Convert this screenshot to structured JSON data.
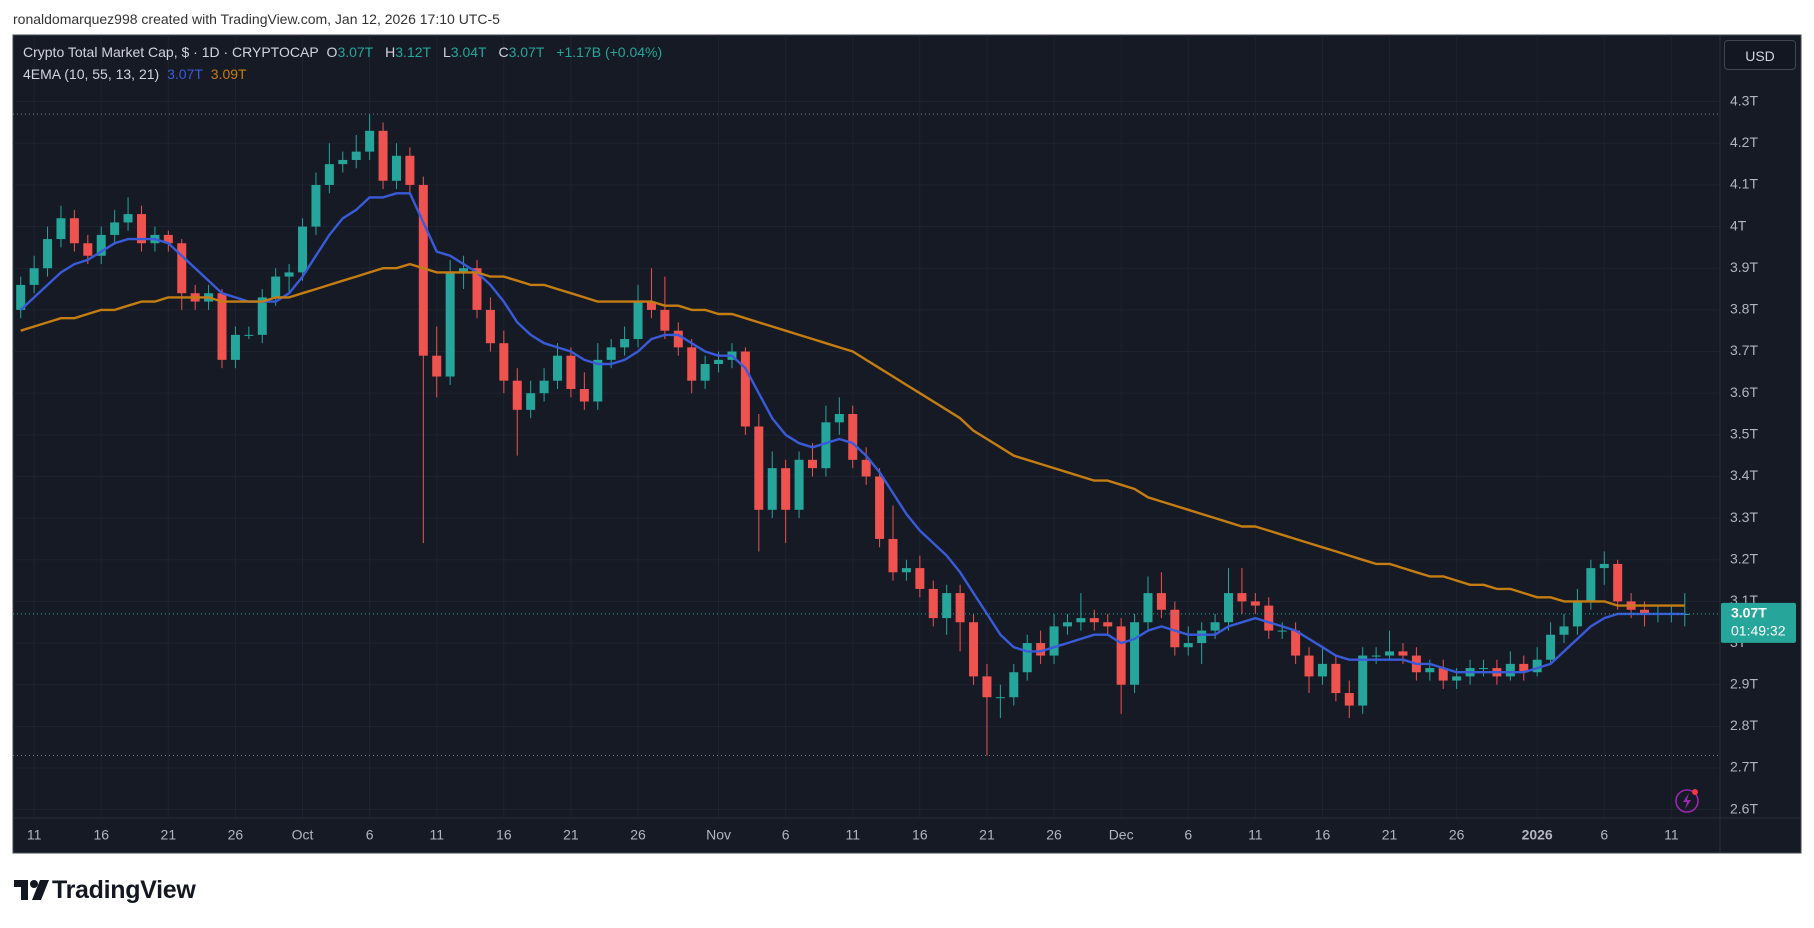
{
  "header": {
    "attribution": "ronaldomarquez998 created with TradingView.com, Jan 12, 2026 17:10 UTC-5"
  },
  "chart_data": {
    "type": "candlestick",
    "title": "Crypto Total Market Cap, $ · 1D · CRYPTOCAP",
    "legend": {
      "o_label": "O",
      "o": "3.07T",
      "h_label": "H",
      "h": "3.12T",
      "l_label": "L",
      "l": "3.04T",
      "c_label": "C",
      "c": "3.07T",
      "change": "+1.17B (+0.04%)"
    },
    "indicator": "4EMA (10, 55, 13, 21)",
    "currency": "USD",
    "last_price_label": "3.07T",
    "countdown": "01:49:32",
    "categories": [
      null,
      "11",
      null,
      null,
      null,
      null,
      "16",
      null,
      null,
      null,
      null,
      "21",
      null,
      null,
      null,
      null,
      "26",
      null,
      null,
      null,
      null,
      "Oct",
      null,
      null,
      null,
      null,
      "6",
      null,
      null,
      null,
      null,
      "11",
      null,
      null,
      null,
      null,
      "16",
      null,
      null,
      null,
      null,
      "21",
      null,
      null,
      null,
      null,
      "26",
      null,
      null,
      null,
      null,
      null,
      "Nov",
      null,
      null,
      null,
      null,
      "6",
      null,
      null,
      null,
      null,
      "11",
      null,
      null,
      null,
      null,
      "16",
      null,
      null,
      null,
      null,
      "21",
      null,
      null,
      null,
      null,
      "26",
      null,
      null,
      null,
      null,
      "Dec",
      null,
      null,
      null,
      null,
      "6",
      null,
      null,
      null,
      null,
      "11",
      null,
      null,
      null,
      null,
      "16",
      null,
      null,
      null,
      null,
      "21",
      null,
      null,
      null,
      null,
      "26",
      null,
      null,
      null,
      null,
      null,
      "2026",
      null,
      null,
      null,
      null,
      "6",
      null,
      null,
      null,
      null,
      "11",
      null
    ],
    "open": [
      3.8,
      3.86,
      3.9,
      3.97,
      4.02,
      3.96,
      3.93,
      3.98,
      4.01,
      4.03,
      3.96,
      3.98,
      3.96,
      3.84,
      3.82,
      3.84,
      3.68,
      3.74,
      3.74,
      3.83,
      3.88,
      3.89,
      4.0,
      4.1,
      4.15,
      4.16,
      4.18,
      4.23,
      4.11,
      4.17,
      4.1,
      3.69,
      3.64,
      3.89,
      3.9,
      3.8,
      3.72,
      3.63,
      3.56,
      3.6,
      3.63,
      3.69,
      3.61,
      3.58,
      3.68,
      3.71,
      3.73,
      3.82,
      3.8,
      3.75,
      3.71,
      3.63,
      3.67,
      3.68,
      3.7,
      3.52,
      3.32,
      3.42,
      3.32,
      3.44,
      3.42,
      3.53,
      3.55,
      3.44,
      3.4,
      3.25,
      3.17,
      3.18,
      3.13,
      3.06,
      3.12,
      3.05,
      2.92,
      2.87,
      2.87,
      2.93,
      3.0,
      2.97,
      3.04,
      3.05,
      3.06,
      3.05,
      3.04,
      2.9,
      3.05,
      3.12,
      3.08,
      2.99,
      3.0,
      3.03,
      3.05,
      3.12,
      3.1,
      3.09,
      3.03,
      3.03,
      2.97,
      2.92,
      2.95,
      2.88,
      2.85,
      2.97,
      2.97,
      2.98,
      2.97,
      2.93,
      2.94,
      2.91,
      2.92,
      2.94,
      2.94,
      2.92,
      2.95,
      2.93,
      2.96,
      3.02,
      3.04,
      3.1,
      3.18,
      3.19,
      3.1,
      3.08,
      3.07,
      3.07,
      3.07
    ],
    "high": [
      3.88,
      3.93,
      4.0,
      4.05,
      4.04,
      3.98,
      4.0,
      4.04,
      4.07,
      4.05,
      4.0,
      3.99,
      3.97,
      3.86,
      3.86,
      3.85,
      3.76,
      3.76,
      3.85,
      3.9,
      3.91,
      4.02,
      4.13,
      4.2,
      4.18,
      4.22,
      4.27,
      4.25,
      4.2,
      4.19,
      4.12,
      3.76,
      3.92,
      3.93,
      3.92,
      3.83,
      3.75,
      3.66,
      3.63,
      3.66,
      3.72,
      3.71,
      3.65,
      3.72,
      3.73,
      3.76,
      3.86,
      3.9,
      3.88,
      3.77,
      3.73,
      3.69,
      3.7,
      3.72,
      3.71,
      3.55,
      3.46,
      3.44,
      3.46,
      3.48,
      3.57,
      3.59,
      3.57,
      3.47,
      3.42,
      3.33,
      3.2,
      3.21,
      3.15,
      3.14,
      3.14,
      3.07,
      2.95,
      2.9,
      2.95,
      3.02,
      3.03,
      3.07,
      3.07,
      3.12,
      3.08,
      3.07,
      3.06,
      3.07,
      3.16,
      3.17,
      3.1,
      3.04,
      3.05,
      3.07,
      3.18,
      3.18,
      3.12,
      3.11,
      3.05,
      3.05,
      2.99,
      2.99,
      2.97,
      2.91,
      2.99,
      2.99,
      3.03,
      3.0,
      2.99,
      2.96,
      2.96,
      2.94,
      2.96,
      2.96,
      2.96,
      2.98,
      2.97,
      2.99,
      3.05,
      3.07,
      3.13,
      3.2,
      3.22,
      3.2,
      3.12,
      3.1,
      3.09,
      3.09,
      3.12
    ],
    "low": [
      3.78,
      3.84,
      3.88,
      3.95,
      3.94,
      3.91,
      3.91,
      3.96,
      3.99,
      3.94,
      3.94,
      3.94,
      3.8,
      3.8,
      3.8,
      3.66,
      3.66,
      3.73,
      3.72,
      3.81,
      3.84,
      3.87,
      3.98,
      4.08,
      4.13,
      4.14,
      4.16,
      4.09,
      4.09,
      4.08,
      3.24,
      3.59,
      3.62,
      3.85,
      3.78,
      3.7,
      3.6,
      3.45,
      3.54,
      3.58,
      3.61,
      3.59,
      3.56,
      3.56,
      3.66,
      3.69,
      3.71,
      3.78,
      3.73,
      3.69,
      3.6,
      3.61,
      3.65,
      3.66,
      3.5,
      3.22,
      3.3,
      3.24,
      3.3,
      3.4,
      3.4,
      3.5,
      3.42,
      3.38,
      3.23,
      3.15,
      3.15,
      3.11,
      3.04,
      3.02,
      2.98,
      2.9,
      2.73,
      2.82,
      2.85,
      2.91,
      2.95,
      2.95,
      3.02,
      3.03,
      3.03,
      3.02,
      2.83,
      2.88,
      3.03,
      3.06,
      2.97,
      2.97,
      2.95,
      3.01,
      3.03,
      3.07,
      3.07,
      3.01,
      3.01,
      2.95,
      2.88,
      2.9,
      2.86,
      2.82,
      2.83,
      2.95,
      2.96,
      2.95,
      2.91,
      2.91,
      2.89,
      2.89,
      2.9,
      2.92,
      2.9,
      2.91,
      2.91,
      2.92,
      2.95,
      3.0,
      3.02,
      3.08,
      3.14,
      3.08,
      3.06,
      3.04,
      3.05,
      3.05,
      3.04
    ],
    "close": [
      3.86,
      3.9,
      3.97,
      4.02,
      3.96,
      3.93,
      3.98,
      4.01,
      4.03,
      3.96,
      3.98,
      3.96,
      3.84,
      3.82,
      3.84,
      3.68,
      3.74,
      3.74,
      3.83,
      3.88,
      3.89,
      4.0,
      4.1,
      4.15,
      4.16,
      4.18,
      4.23,
      4.11,
      4.17,
      4.1,
      3.69,
      3.64,
      3.89,
      3.9,
      3.8,
      3.72,
      3.63,
      3.56,
      3.6,
      3.63,
      3.69,
      3.61,
      3.58,
      3.68,
      3.71,
      3.73,
      3.82,
      3.8,
      3.75,
      3.71,
      3.63,
      3.67,
      3.68,
      3.7,
      3.52,
      3.32,
      3.42,
      3.32,
      3.44,
      3.42,
      3.53,
      3.55,
      3.44,
      3.4,
      3.25,
      3.17,
      3.18,
      3.13,
      3.06,
      3.12,
      3.05,
      2.92,
      2.87,
      2.87,
      2.93,
      3.0,
      2.97,
      3.04,
      3.05,
      3.06,
      3.05,
      3.04,
      2.9,
      3.05,
      3.12,
      3.08,
      2.99,
      3.0,
      3.03,
      3.05,
      3.12,
      3.1,
      3.09,
      3.03,
      3.03,
      2.97,
      2.92,
      2.95,
      2.88,
      2.85,
      2.97,
      2.97,
      2.98,
      2.97,
      2.93,
      2.94,
      2.91,
      2.92,
      2.94,
      2.94,
      2.92,
      2.95,
      2.93,
      2.96,
      3.02,
      3.04,
      3.1,
      3.18,
      3.19,
      3.1,
      3.08,
      3.07,
      3.07,
      3.07,
      3.07
    ],
    "up_color": "#26a69a",
    "down_color": "#ef5350",
    "series": [
      {
        "color": "#3a5bd9",
        "last_label": "3.07T",
        "values": [
          3.8,
          3.83,
          3.86,
          3.89,
          3.91,
          3.92,
          3.94,
          3.96,
          3.97,
          3.97,
          3.97,
          3.96,
          3.93,
          3.9,
          3.87,
          3.84,
          3.83,
          3.82,
          3.82,
          3.82,
          3.84,
          3.88,
          3.93,
          3.98,
          4.02,
          4.04,
          4.07,
          4.07,
          4.08,
          4.08,
          4.01,
          3.94,
          3.93,
          3.91,
          3.89,
          3.86,
          3.82,
          3.77,
          3.74,
          3.72,
          3.71,
          3.7,
          3.68,
          3.67,
          3.67,
          3.68,
          3.7,
          3.73,
          3.74,
          3.74,
          3.72,
          3.7,
          3.69,
          3.69,
          3.66,
          3.6,
          3.54,
          3.5,
          3.48,
          3.47,
          3.48,
          3.49,
          3.48,
          3.45,
          3.41,
          3.36,
          3.31,
          3.27,
          3.24,
          3.21,
          3.17,
          3.12,
          3.07,
          3.02,
          2.99,
          2.98,
          2.98,
          2.99,
          3.0,
          3.01,
          3.02,
          3.02,
          3.0,
          3.01,
          3.03,
          3.04,
          3.03,
          3.02,
          3.02,
          3.02,
          3.04,
          3.05,
          3.06,
          3.05,
          3.04,
          3.03,
          3.01,
          2.99,
          2.97,
          2.96,
          2.96,
          2.96,
          2.96,
          2.96,
          2.95,
          2.95,
          2.94,
          2.93,
          2.93,
          2.93,
          2.93,
          2.93,
          2.93,
          2.94,
          2.95,
          2.98,
          3.01,
          3.04,
          3.06,
          3.07,
          3.07,
          3.07,
          3.07,
          3.07,
          3.07
        ]
      },
      {
        "color": "#c47d12",
        "last_label": "3.09T",
        "values": [
          3.75,
          3.76,
          3.77,
          3.78,
          3.78,
          3.79,
          3.8,
          3.8,
          3.81,
          3.82,
          3.82,
          3.83,
          3.83,
          3.83,
          3.83,
          3.82,
          3.82,
          3.82,
          3.82,
          3.83,
          3.83,
          3.84,
          3.85,
          3.86,
          3.87,
          3.88,
          3.89,
          3.9,
          3.9,
          3.91,
          3.9,
          3.89,
          3.89,
          3.89,
          3.89,
          3.88,
          3.88,
          3.87,
          3.86,
          3.86,
          3.85,
          3.84,
          3.83,
          3.82,
          3.82,
          3.82,
          3.82,
          3.82,
          3.81,
          3.81,
          3.8,
          3.8,
          3.79,
          3.79,
          3.78,
          3.77,
          3.76,
          3.75,
          3.74,
          3.73,
          3.72,
          3.71,
          3.7,
          3.68,
          3.66,
          3.64,
          3.62,
          3.6,
          3.58,
          3.56,
          3.54,
          3.51,
          3.49,
          3.47,
          3.45,
          3.44,
          3.43,
          3.42,
          3.41,
          3.4,
          3.39,
          3.39,
          3.38,
          3.37,
          3.35,
          3.34,
          3.33,
          3.32,
          3.31,
          3.3,
          3.29,
          3.28,
          3.28,
          3.27,
          3.26,
          3.25,
          3.24,
          3.23,
          3.22,
          3.21,
          3.2,
          3.19,
          3.19,
          3.18,
          3.17,
          3.16,
          3.16,
          3.15,
          3.14,
          3.14,
          3.13,
          3.13,
          3.12,
          3.11,
          3.11,
          3.1,
          3.1,
          3.1,
          3.1,
          3.09,
          3.09,
          3.09,
          3.09,
          3.09,
          3.09
        ]
      }
    ],
    "ylim": [
      2.58,
      4.46
    ],
    "yticks": [
      {
        "value": 2.6,
        "label": "2.6T"
      },
      {
        "value": 2.7,
        "label": "2.7T"
      },
      {
        "value": 2.8,
        "label": "2.8T"
      },
      {
        "value": 2.9,
        "label": "2.9T"
      },
      {
        "value": 3,
        "label": "3T"
      },
      {
        "value": 3.1,
        "label": "3.1T"
      },
      {
        "value": 3.2,
        "label": "3.2T"
      },
      {
        "value": 3.3,
        "label": "3.3T"
      },
      {
        "value": 3.4,
        "label": "3.4T"
      },
      {
        "value": 3.5,
        "label": "3.5T"
      },
      {
        "value": 3.6,
        "label": "3.6T"
      },
      {
        "value": 3.7,
        "label": "3.7T"
      },
      {
        "value": 3.8,
        "label": "3.8T"
      },
      {
        "value": 3.9,
        "label": "3.9T"
      },
      {
        "value": 4,
        "label": "4T"
      },
      {
        "value": 4.1,
        "label": "4.1T"
      },
      {
        "value": 4.2,
        "label": "4.2T"
      },
      {
        "value": 4.3,
        "label": "4.3T"
      }
    ],
    "grid": true
  },
  "footer": {
    "brand": "TradingView"
  }
}
